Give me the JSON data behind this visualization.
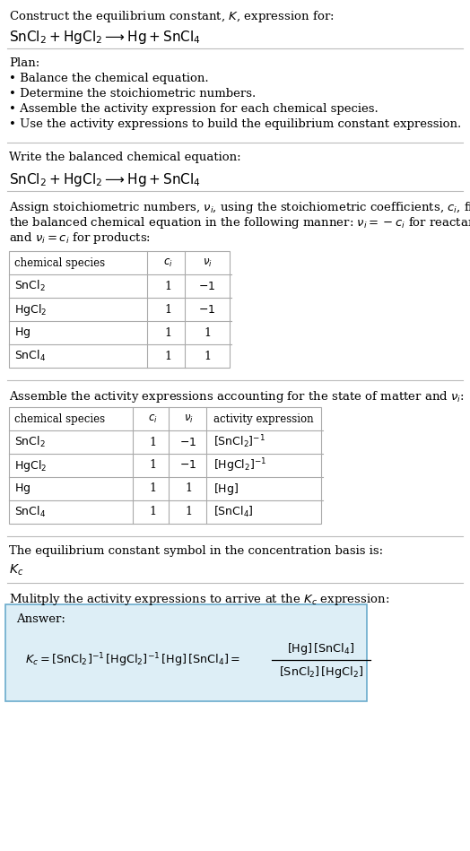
{
  "bg_color": "#ffffff",
  "text_color": "#000000",
  "title_line1": "Construct the equilibrium constant, $K$, expression for:",
  "title_line2": "$\\mathrm{SnCl_2 + HgCl_2 \\longrightarrow Hg + SnCl_4}$",
  "plan_header": "Plan:",
  "plan_bullets": [
    "• Balance the chemical equation.",
    "• Determine the stoichiometric numbers.",
    "• Assemble the activity expression for each chemical species.",
    "• Use the activity expressions to build the equilibrium constant expression."
  ],
  "balanced_header": "Write the balanced chemical equation:",
  "balanced_eq": "$\\mathrm{SnCl_2 + HgCl_2 \\longrightarrow Hg + SnCl_4}$",
  "stoich_intro_lines": [
    "Assign stoichiometric numbers, $\\nu_i$, using the stoichiometric coefficients, $c_i$, from",
    "the balanced chemical equation in the following manner: $\\nu_i = -c_i$ for reactants",
    "and $\\nu_i = c_i$ for products:"
  ],
  "table1_headers": [
    "chemical species",
    "$c_i$",
    "$\\nu_i$"
  ],
  "table1_rows": [
    [
      "$\\mathrm{SnCl_2}$",
      "1",
      "$-1$"
    ],
    [
      "$\\mathrm{HgCl_2}$",
      "1",
      "$-1$"
    ],
    [
      "$\\mathrm{Hg}$",
      "1",
      "1"
    ],
    [
      "$\\mathrm{SnCl_4}$",
      "1",
      "1"
    ]
  ],
  "activity_intro": "Assemble the activity expressions accounting for the state of matter and $\\nu_i$:",
  "table2_headers": [
    "chemical species",
    "$c_i$",
    "$\\nu_i$",
    "activity expression"
  ],
  "table2_rows": [
    [
      "$\\mathrm{SnCl_2}$",
      "1",
      "$-1$",
      "$[\\mathrm{SnCl_2}]^{-1}$"
    ],
    [
      "$\\mathrm{HgCl_2}$",
      "1",
      "$-1$",
      "$[\\mathrm{HgCl_2}]^{-1}$"
    ],
    [
      "$\\mathrm{Hg}$",
      "1",
      "1",
      "$[\\mathrm{Hg}]$"
    ],
    [
      "$\\mathrm{SnCl_4}$",
      "1",
      "1",
      "$[\\mathrm{SnCl_4}]$"
    ]
  ],
  "kc_intro": "The equilibrium constant symbol in the concentration basis is:",
  "kc_symbol": "$K_c$",
  "multiply_intro": "Mulitply the activity expressions to arrive at the $K_c$ expression:",
  "answer_label": "Answer:",
  "answer_box_color": "#ddeef6",
  "answer_box_border": "#6aabcc"
}
